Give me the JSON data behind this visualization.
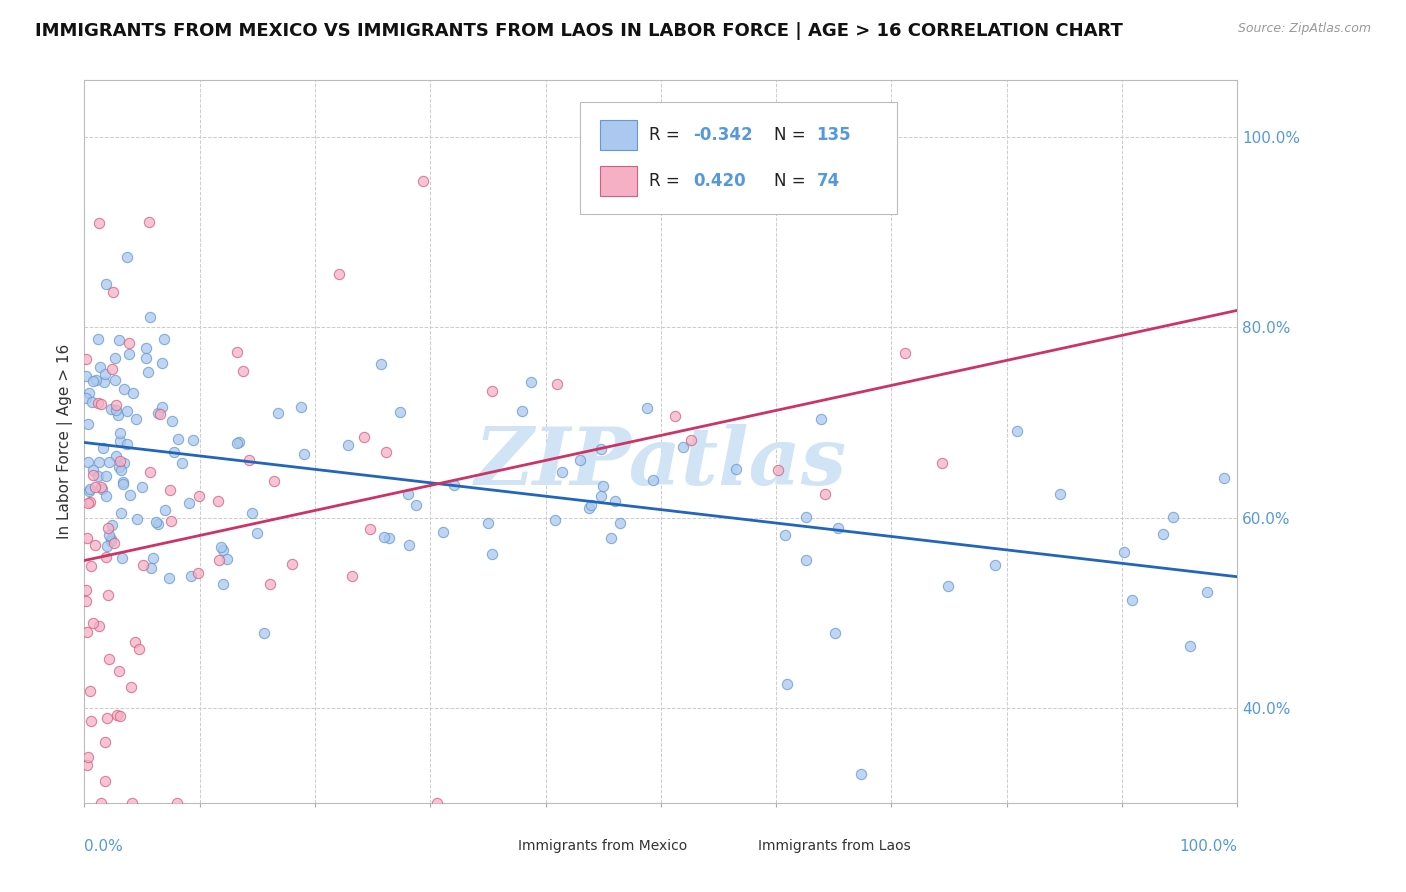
{
  "title": "IMMIGRANTS FROM MEXICO VS IMMIGRANTS FROM LAOS IN LABOR FORCE | AGE > 16 CORRELATION CHART",
  "source": "Source: ZipAtlas.com",
  "ylabel": "In Labor Force | Age > 16",
  "xlim": [
    0.0,
    1.0
  ],
  "ylim": [
    0.3,
    1.06
  ],
  "mexico_face_color": "#aac8f0",
  "mexico_edge_color": "#6699cc",
  "laos_face_color": "#f5b0c5",
  "laos_edge_color": "#d06080",
  "mexico_line_color": "#2266bb",
  "laos_line_color": "#cc3366",
  "legend_r_mexico": "-0.342",
  "legend_n_mexico": "135",
  "legend_r_laos": "0.420",
  "legend_n_laos": "74",
  "background_color": "#ffffff",
  "grid_color": "#cccccc",
  "tick_color": "#5599dd",
  "watermark_color": "#d0e4f5",
  "title_fontsize": 13,
  "axis_label_fontsize": 11,
  "tick_fontsize": 11,
  "legend_fontsize": 12
}
